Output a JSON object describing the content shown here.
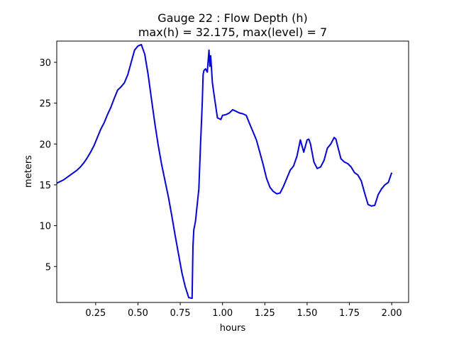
{
  "chart_data": {
    "type": "line",
    "title_line1": "Gauge 22 : Flow Depth (h)",
    "title_line2": "max(h) =  32.175,    max(level) = 7",
    "xlabel": "hours",
    "ylabel": "meters",
    "xlim": [
      0.02,
      2.1
    ],
    "ylim": [
      0.6,
      32.6
    ],
    "xticks": [
      {
        "value": 0.25,
        "label": "0.25"
      },
      {
        "value": 0.5,
        "label": "0.50"
      },
      {
        "value": 0.75,
        "label": "0.75"
      },
      {
        "value": 1.0,
        "label": "1.00"
      },
      {
        "value": 1.25,
        "label": "1.25"
      },
      {
        "value": 1.5,
        "label": "1.50"
      },
      {
        "value": 1.75,
        "label": "1.75"
      },
      {
        "value": 2.0,
        "label": "2.00"
      }
    ],
    "yticks": [
      {
        "value": 5,
        "label": "5"
      },
      {
        "value": 10,
        "label": "10"
      },
      {
        "value": 15,
        "label": "15"
      },
      {
        "value": 20,
        "label": "20"
      },
      {
        "value": 25,
        "label": "25"
      },
      {
        "value": 30,
        "label": "30"
      }
    ],
    "grid": false,
    "series": [
      {
        "color": "#0000ff",
        "x": [
          0.02,
          0.06,
          0.1,
          0.12,
          0.14,
          0.16,
          0.18,
          0.2,
          0.22,
          0.24,
          0.26,
          0.28,
          0.3,
          0.32,
          0.34,
          0.36,
          0.38,
          0.4,
          0.42,
          0.44,
          0.46,
          0.48,
          0.5,
          0.52,
          0.54,
          0.56,
          0.58,
          0.6,
          0.62,
          0.64,
          0.66,
          0.68,
          0.7,
          0.72,
          0.74,
          0.76,
          0.78,
          0.8,
          0.82,
          0.825,
          0.83,
          0.84,
          0.86,
          0.87,
          0.88,
          0.885,
          0.89,
          0.9,
          0.91,
          0.92,
          0.925,
          0.93,
          0.94,
          0.95,
          0.97,
          0.99,
          1.0,
          1.02,
          1.04,
          1.06,
          1.08,
          1.1,
          1.12,
          1.14,
          1.16,
          1.18,
          1.2,
          1.22,
          1.24,
          1.26,
          1.28,
          1.3,
          1.32,
          1.34,
          1.36,
          1.38,
          1.4,
          1.42,
          1.44,
          1.46,
          1.48,
          1.5,
          1.51,
          1.52,
          1.54,
          1.56,
          1.58,
          1.6,
          1.62,
          1.64,
          1.66,
          1.67,
          1.68,
          1.7,
          1.72,
          1.74,
          1.76,
          1.78,
          1.8,
          1.82,
          1.84,
          1.86,
          1.88,
          1.9,
          1.92,
          1.94,
          1.96,
          1.98,
          2.0
        ],
        "values": [
          15.2,
          15.6,
          16.2,
          16.5,
          16.8,
          17.2,
          17.7,
          18.3,
          19.0,
          19.8,
          20.8,
          21.8,
          22.6,
          23.6,
          24.5,
          25.6,
          26.6,
          27.0,
          27.5,
          28.5,
          30.0,
          31.5,
          32.0,
          32.175,
          31.0,
          28.5,
          25.5,
          22.5,
          19.8,
          17.5,
          15.5,
          13.5,
          11.2,
          8.8,
          6.5,
          4.2,
          2.5,
          1.2,
          1.1,
          7.5,
          9.5,
          10.5,
          14.5,
          20.0,
          25.0,
          28.5,
          29.0,
          29.2,
          28.8,
          31.5,
          29.5,
          30.8,
          27.5,
          26.0,
          23.2,
          23.0,
          23.5,
          23.6,
          23.8,
          24.2,
          24.0,
          23.8,
          23.7,
          23.5,
          22.5,
          21.5,
          20.5,
          19.0,
          17.5,
          15.8,
          14.7,
          14.2,
          13.9,
          14.0,
          14.8,
          15.8,
          16.8,
          17.3,
          18.5,
          20.5,
          19.0,
          20.5,
          20.6,
          20.0,
          17.8,
          17.0,
          17.2,
          18.0,
          19.5,
          20.0,
          20.8,
          20.6,
          19.8,
          18.2,
          17.8,
          17.6,
          17.2,
          16.5,
          16.2,
          15.5,
          14.0,
          12.6,
          12.4,
          12.5,
          13.8,
          14.5,
          15.0,
          15.3,
          16.5
        ]
      }
    ]
  }
}
